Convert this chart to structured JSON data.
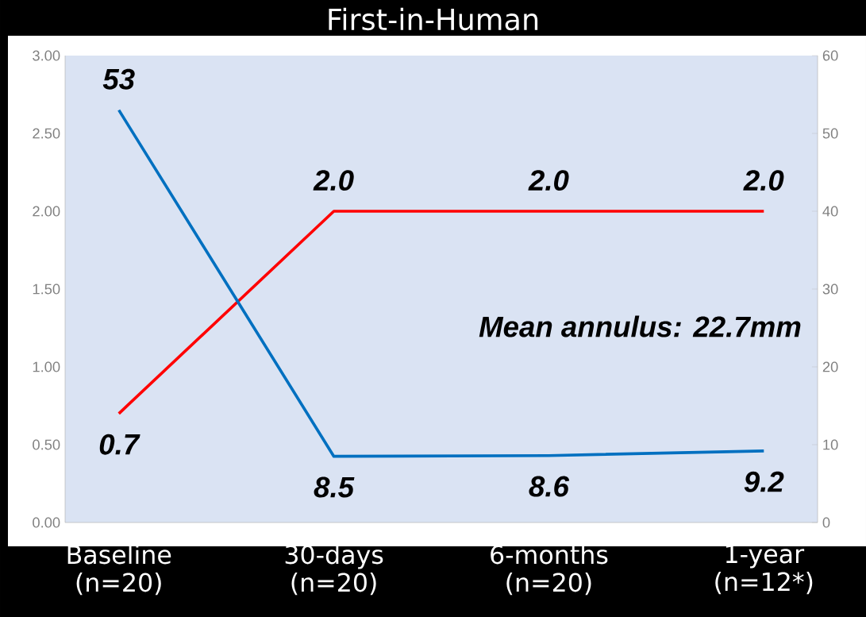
{
  "chart_data": {
    "type": "line",
    "title": "First-in-Human",
    "categories": [
      "Baseline (n=20)",
      "30-days (n=20)",
      "6-months (n=20)",
      "1-year (n=12*)"
    ],
    "series": [
      {
        "color": "#ff0000",
        "values": [
          0.7,
          2.0,
          2.0,
          2.0
        ],
        "value_labels": [
          "0.7",
          "2.0",
          "2.0",
          "2.0"
        ]
      },
      {
        "color": "#0070c0",
        "axis": "y2",
        "values": [
          53,
          8.5,
          8.6,
          9.2
        ],
        "value_labels": [
          "53",
          "8.5",
          "8.6",
          "9.2"
        ]
      }
    ],
    "ylim": [
      0,
      3
    ],
    "yticks": [
      {
        "value": 0,
        "label": "0.00"
      },
      {
        "value": 0.5,
        "label": "0.50"
      },
      {
        "value": 1,
        "label": "1.00"
      },
      {
        "value": 1.5,
        "label": "1.50"
      },
      {
        "value": 2,
        "label": "2.00"
      },
      {
        "value": 2.5,
        "label": "2.50"
      },
      {
        "value": 3,
        "label": "3.00"
      }
    ],
    "y2lim": [
      0,
      60
    ],
    "y2ticks": [
      0,
      10,
      20,
      30,
      40,
      50,
      60
    ],
    "annotations": [
      "Mean annulus: 22.7mm"
    ],
    "grid": false,
    "marker": "none"
  }
}
